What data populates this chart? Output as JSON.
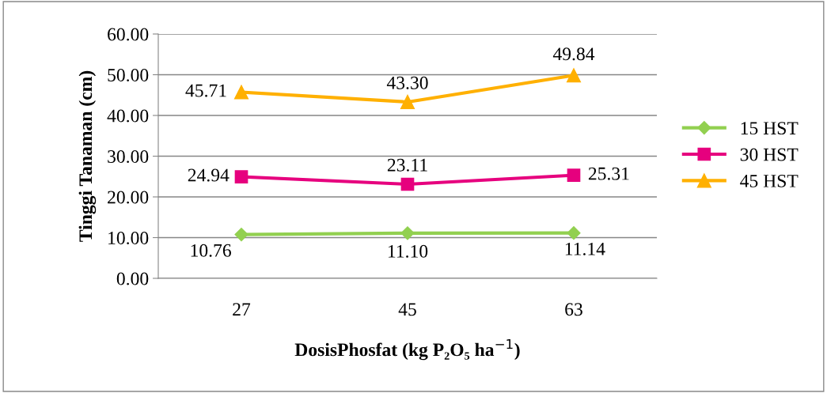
{
  "chart_data": {
    "type": "line",
    "xlabel": "DosisPhosfat (kg P₂O₅ ha$^{−1}$)",
    "ylabel": "Tinggi Tanaman (cm)",
    "categories": [
      "27",
      "45",
      "63"
    ],
    "ylim": [
      0,
      60
    ],
    "yticks": [
      {
        "value": 0,
        "label": "0.00"
      },
      {
        "value": 10,
        "label": "10.00"
      },
      {
        "value": 20,
        "label": "20.00"
      },
      {
        "value": 30,
        "label": "30.00"
      },
      {
        "value": 40,
        "label": "40.00"
      },
      {
        "value": 50,
        "label": "50.00"
      },
      {
        "value": 60,
        "label": "60.00"
      }
    ],
    "grid": "y",
    "legend": "right",
    "series": [
      {
        "name": "15 HST",
        "color": "#92d050",
        "marker": "diamond",
        "values": [
          10.76,
          11.1,
          11.14
        ],
        "value_labels": [
          "10.76",
          "11.10",
          "11.14"
        ]
      },
      {
        "name": "30 HST",
        "color": "#e6007e",
        "marker": "square",
        "values": [
          24.94,
          23.11,
          25.31
        ],
        "value_labels": [
          "24.94",
          "23.11",
          "25.31"
        ]
      },
      {
        "name": "45 HST",
        "color": "#ffb000",
        "marker": "triangle",
        "values": [
          45.71,
          43.3,
          49.84
        ],
        "value_labels": [
          "45.71",
          "43.30",
          "49.84"
        ]
      }
    ]
  }
}
